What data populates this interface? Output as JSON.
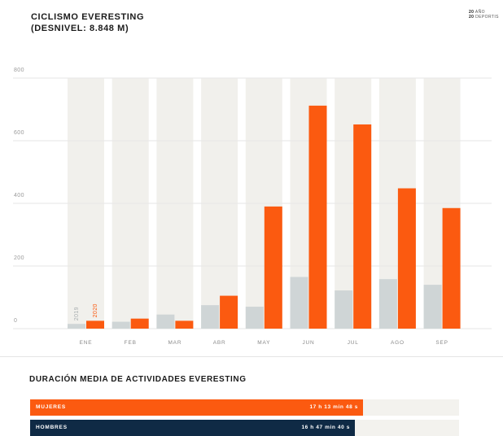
{
  "header": {
    "title_line1": "CICLISMO EVERESTING",
    "title_line2": "(DESNIVEL: 8.848 M)"
  },
  "legend_note": {
    "line1_num": "20",
    "line1_text": "AÑO",
    "line2_num": "20",
    "line2_text": "DEPORTIS"
  },
  "colors": {
    "series_2019": "#cfd5d6",
    "series_2020": "#fb5a10",
    "column_bg": "#f1f0ec",
    "dark_bar": "#0f2a45"
  },
  "chart_data": {
    "type": "bar",
    "title": "CICLISMO EVERESTING (DESNIVEL: 8.848 M)",
    "categories": [
      "ENE",
      "FEB",
      "MAR",
      "ABR",
      "MAY",
      "JUN",
      "JUL",
      "AGO",
      "SEP"
    ],
    "series": [
      {
        "name": "2019",
        "values": [
          15,
          22,
          45,
          75,
          70,
          165,
          122,
          158,
          140
        ]
      },
      {
        "name": "2020",
        "values": [
          25,
          32,
          25,
          105,
          390,
          712,
          652,
          448,
          385
        ]
      }
    ],
    "ylim": [
      0,
      800
    ],
    "yticks": [
      0,
      200,
      400,
      600,
      800
    ],
    "grid": true
  },
  "duration": {
    "title": "DURACIÓN MEDIA DE ACTIVIDADES EVERESTING",
    "rows": [
      {
        "label": "MUJERES",
        "value": "17 h 13 min 48 s",
        "fraction": 0.776
      },
      {
        "label": "HOMBRES",
        "value": "16 h 47 min 40 s",
        "fraction": 0.757
      }
    ]
  }
}
